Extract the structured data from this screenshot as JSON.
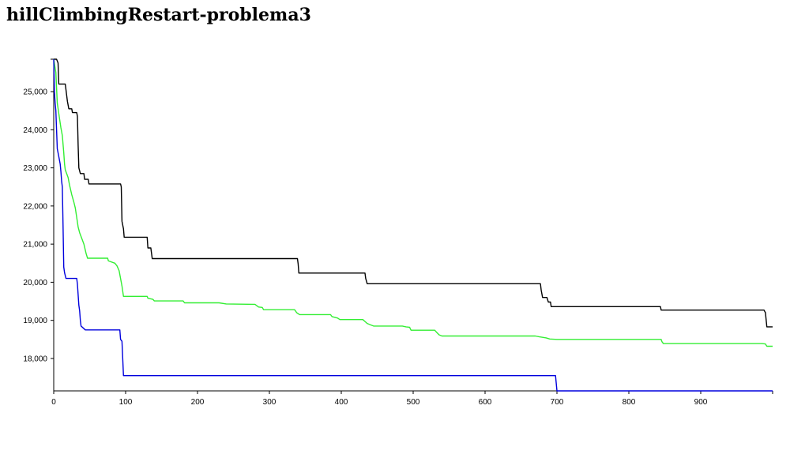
{
  "title": "hillClimbingRestart-problema3",
  "chart_data": {
    "type": "line",
    "title": "hillClimbingRestart-problema3",
    "xlabel": "",
    "ylabel": "",
    "xlim": [
      0,
      1000
    ],
    "ylim": [
      17150,
      25850
    ],
    "grid": false,
    "x_ticks": [
      0,
      100,
      200,
      300,
      400,
      500,
      600,
      700,
      800,
      900
    ],
    "x_tick_labels": [
      "0",
      "100",
      "200",
      "300",
      "400",
      "500",
      "600",
      "700",
      "800",
      "900"
    ],
    "y_ticks": [
      18000,
      19000,
      20000,
      21000,
      22000,
      23000,
      24000,
      25000
    ],
    "y_tick_labels": [
      "18,000",
      "19,000",
      "20,000",
      "21,000",
      "22,000",
      "23,000",
      "24,000",
      "25,000"
    ],
    "series": [
      {
        "color": "#000000",
        "points": [
          [
            0,
            25850
          ],
          [
            4,
            25850
          ],
          [
            6,
            25750
          ],
          [
            7,
            25200
          ],
          [
            16,
            25200
          ],
          [
            17,
            25050
          ],
          [
            19,
            24750
          ],
          [
            21,
            24550
          ],
          [
            25,
            24550
          ],
          [
            26,
            24450
          ],
          [
            32,
            24450
          ],
          [
            33,
            24350
          ],
          [
            34,
            23600
          ],
          [
            35,
            23000
          ],
          [
            37,
            22850
          ],
          [
            42,
            22850
          ],
          [
            43,
            22700
          ],
          [
            48,
            22700
          ],
          [
            49,
            22580
          ],
          [
            93,
            22580
          ],
          [
            94,
            22500
          ],
          [
            95,
            21600
          ],
          [
            97,
            21400
          ],
          [
            98,
            21180
          ],
          [
            130,
            21180
          ],
          [
            131,
            20900
          ],
          [
            135,
            20900
          ],
          [
            137,
            20620
          ],
          [
            339,
            20620
          ],
          [
            340,
            20480
          ],
          [
            341,
            20240
          ],
          [
            433,
            20240
          ],
          [
            434,
            20100
          ],
          [
            436,
            19960
          ],
          [
            677,
            19960
          ],
          [
            678,
            19800
          ],
          [
            680,
            19600
          ],
          [
            686,
            19600
          ],
          [
            688,
            19480
          ],
          [
            691,
            19480
          ],
          [
            692,
            19360
          ],
          [
            844,
            19360
          ],
          [
            845,
            19270
          ],
          [
            988,
            19270
          ],
          [
            990,
            19200
          ],
          [
            992,
            18830
          ],
          [
            1000,
            18830
          ]
        ]
      },
      {
        "color": "#33ee33",
        "points": [
          [
            0,
            25850
          ],
          [
            3,
            25500
          ],
          [
            5,
            24700
          ],
          [
            8,
            24300
          ],
          [
            10,
            24050
          ],
          [
            12,
            23850
          ],
          [
            14,
            23400
          ],
          [
            15,
            23100
          ],
          [
            16,
            22950
          ],
          [
            20,
            22750
          ],
          [
            22,
            22550
          ],
          [
            25,
            22300
          ],
          [
            28,
            22100
          ],
          [
            30,
            21950
          ],
          [
            32,
            21700
          ],
          [
            34,
            21450
          ],
          [
            36,
            21300
          ],
          [
            39,
            21150
          ],
          [
            42,
            21000
          ],
          [
            45,
            20760
          ],
          [
            47,
            20630
          ],
          [
            75,
            20630
          ],
          [
            76,
            20560
          ],
          [
            85,
            20500
          ],
          [
            88,
            20430
          ],
          [
            91,
            20300
          ],
          [
            93,
            20100
          ],
          [
            95,
            19900
          ],
          [
            97,
            19630
          ],
          [
            130,
            19630
          ],
          [
            131,
            19580
          ],
          [
            138,
            19550
          ],
          [
            140,
            19510
          ],
          [
            180,
            19510
          ],
          [
            182,
            19460
          ],
          [
            230,
            19460
          ],
          [
            240,
            19430
          ],
          [
            280,
            19420
          ],
          [
            285,
            19350
          ],
          [
            290,
            19340
          ],
          [
            292,
            19280
          ],
          [
            335,
            19280
          ],
          [
            338,
            19200
          ],
          [
            342,
            19150
          ],
          [
            385,
            19150
          ],
          [
            387,
            19100
          ],
          [
            395,
            19060
          ],
          [
            398,
            19020
          ],
          [
            430,
            19020
          ],
          [
            433,
            18970
          ],
          [
            436,
            18920
          ],
          [
            441,
            18880
          ],
          [
            445,
            18850
          ],
          [
            485,
            18850
          ],
          [
            490,
            18830
          ],
          [
            495,
            18820
          ],
          [
            497,
            18740
          ],
          [
            530,
            18740
          ],
          [
            533,
            18680
          ],
          [
            536,
            18620
          ],
          [
            540,
            18590
          ],
          [
            670,
            18590
          ],
          [
            675,
            18570
          ],
          [
            685,
            18540
          ],
          [
            690,
            18510
          ],
          [
            700,
            18500
          ],
          [
            845,
            18500
          ],
          [
            846,
            18440
          ],
          [
            848,
            18390
          ],
          [
            985,
            18390
          ],
          [
            990,
            18380
          ],
          [
            992,
            18320
          ],
          [
            1000,
            18320
          ]
        ]
      },
      {
        "color": "#0000dd",
        "points": [
          [
            0,
            25850
          ],
          [
            1,
            25000
          ],
          [
            2,
            24700
          ],
          [
            3,
            24500
          ],
          [
            4,
            24000
          ],
          [
            5,
            23500
          ],
          [
            7,
            23300
          ],
          [
            9,
            23100
          ],
          [
            10,
            22900
          ],
          [
            11,
            22650
          ],
          [
            12,
            22500
          ],
          [
            13,
            21500
          ],
          [
            14,
            20400
          ],
          [
            15,
            20250
          ],
          [
            17,
            20100
          ],
          [
            32,
            20100
          ],
          [
            33,
            19950
          ],
          [
            35,
            19400
          ],
          [
            36,
            19250
          ],
          [
            37,
            19000
          ],
          [
            38,
            18850
          ],
          [
            41,
            18800
          ],
          [
            44,
            18750
          ],
          [
            92,
            18750
          ],
          [
            93,
            18500
          ],
          [
            95,
            18450
          ],
          [
            97,
            17550
          ],
          [
            698,
            17550
          ],
          [
            700,
            17150
          ],
          [
            1000,
            17150
          ]
        ]
      }
    ]
  }
}
